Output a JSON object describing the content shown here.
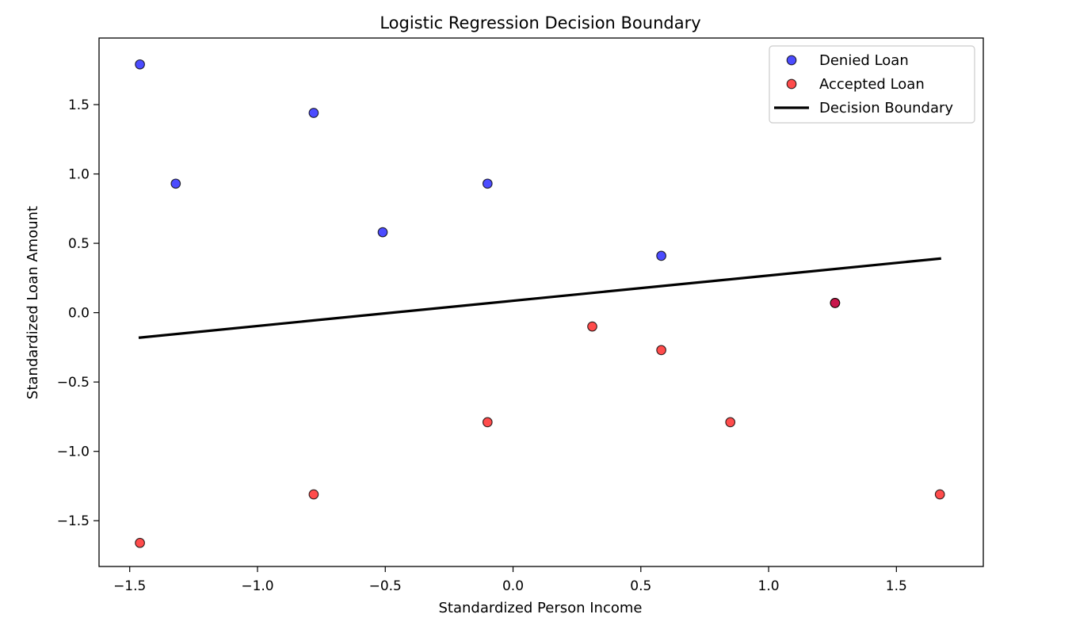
{
  "chart_data": {
    "type": "scatter",
    "title": "Logistic Regression Decision Boundary",
    "xlabel": "Standardized Person Income",
    "ylabel": "Standardized Loan Amount",
    "xlim": [
      -1.62,
      1.84
    ],
    "ylim": [
      -1.83,
      1.98
    ],
    "x_ticks": [
      -1.5,
      -1.0,
      -0.5,
      0.0,
      0.5,
      1.0,
      1.5
    ],
    "x_tick_labels": [
      "−1.5",
      "−1.0",
      "−0.5",
      "0.0",
      "0.5",
      "1.0",
      "1.5"
    ],
    "y_ticks": [
      -1.5,
      -1.0,
      -0.5,
      0.0,
      0.5,
      1.0,
      1.5
    ],
    "y_tick_labels": [
      "−1.5",
      "−1.0",
      "−0.5",
      "0.0",
      "0.5",
      "1.0",
      "1.5"
    ],
    "grid": false,
    "legend_position": "top-right",
    "series": [
      {
        "name": "Denied Loan",
        "kind": "scatter",
        "color": "#0000ff",
        "points": [
          {
            "x": -1.46,
            "y": 1.79
          },
          {
            "x": -1.32,
            "y": 0.93
          },
          {
            "x": -0.78,
            "y": 1.44
          },
          {
            "x": -0.51,
            "y": 0.58
          },
          {
            "x": -0.1,
            "y": 0.93
          },
          {
            "x": 0.58,
            "y": 0.41
          },
          {
            "x": 1.26,
            "y": 0.07
          }
        ]
      },
      {
        "name": "Accepted Loan",
        "kind": "scatter",
        "color": "#ff0000",
        "points": [
          {
            "x": -1.46,
            "y": -1.66
          },
          {
            "x": -0.78,
            "y": -1.31
          },
          {
            "x": -0.1,
            "y": -0.79
          },
          {
            "x": 0.31,
            "y": -0.1
          },
          {
            "x": 0.58,
            "y": -0.27
          },
          {
            "x": 0.85,
            "y": -0.79
          },
          {
            "x": 1.26,
            "y": 0.07
          },
          {
            "x": 1.67,
            "y": -1.31
          }
        ]
      },
      {
        "name": "Decision Boundary",
        "kind": "line",
        "color": "#000000",
        "points": [
          {
            "x": -1.46,
            "y": -0.18
          },
          {
            "x": 1.67,
            "y": 0.39
          }
        ]
      }
    ]
  }
}
